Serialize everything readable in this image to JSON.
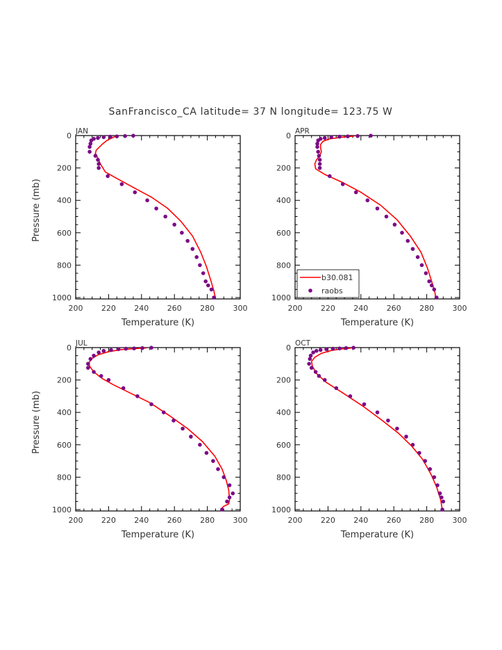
{
  "title": "SanFrancisco_CA  latitude= 37 N longitude= 123.75 W",
  "colors": {
    "model": "#ff0000",
    "obs": "#7b0a86",
    "frame": "#000000",
    "text": "#333333"
  },
  "legend": {
    "placement": "inside lower-left of APR panel",
    "model_label": "b30.081",
    "obs_label": "raobs"
  },
  "chart_data": [
    {
      "type": "line",
      "panel": "JAN",
      "xlabel": "Temperature (K)",
      "ylabel": "Pressure (mb)",
      "xlim": [
        200,
        300
      ],
      "ylim": [
        1000,
        0
      ],
      "xticks": [
        200,
        220,
        240,
        260,
        280,
        300
      ],
      "yticks": [
        0,
        200,
        400,
        600,
        800,
        1000
      ],
      "series": [
        {
          "name": "b30.081",
          "style": "line",
          "x": [
            224,
            222,
            219,
            216.5,
            214.5,
            212.5,
            212,
            213,
            214,
            215,
            218,
            225,
            235,
            246,
            256,
            264,
            271,
            276,
            279.5,
            282,
            284,
            285
          ],
          "y": [
            5,
            15,
            30,
            50,
            70,
            90,
            110,
            130,
            150,
            175,
            225,
            265,
            320,
            380,
            450,
            530,
            620,
            720,
            810,
            890,
            960,
            1005
          ]
        },
        {
          "name": "raobs",
          "style": "points",
          "x": [
            235,
            230,
            225,
            221,
            217,
            213.5,
            211,
            209.5,
            209,
            208.5,
            208.5,
            212,
            213.5,
            214,
            214,
            219.5,
            228,
            236,
            243.5,
            249,
            254.5,
            260,
            264.5,
            268,
            271,
            273.5,
            275.5,
            277.5,
            279,
            280.5,
            282.5,
            284
          ],
          "y": [
            1,
            3,
            5,
            7,
            10,
            15,
            20,
            30,
            50,
            70,
            100,
            125,
            150,
            175,
            200,
            250,
            300,
            350,
            400,
            450,
            500,
            550,
            600,
            650,
            700,
            750,
            800,
            850,
            900,
            925,
            950,
            1000
          ]
        }
      ]
    },
    {
      "type": "line",
      "panel": "APR",
      "xlabel": "Temperature (K)",
      "ylabel": "",
      "xlim": [
        200,
        300
      ],
      "ylim": [
        1000,
        0
      ],
      "xticks": [
        200,
        220,
        240,
        260,
        280,
        300
      ],
      "yticks": [
        0,
        200,
        400,
        600,
        800,
        1000
      ],
      "series": [
        {
          "name": "b30.081",
          "style": "line",
          "x": [
            236,
            232,
            227,
            221,
            217,
            215.5,
            215.5,
            216,
            215,
            213,
            212,
            212.5,
            218,
            229,
            240,
            252,
            262,
            270,
            276.5,
            280.5,
            283,
            285,
            285.5
          ],
          "y": [
            3,
            7,
            12,
            20,
            35,
            55,
            75,
            100,
            125,
            150,
            175,
            205,
            240,
            290,
            350,
            430,
            520,
            620,
            720,
            820,
            900,
            970,
            1005
          ]
        },
        {
          "name": "raobs",
          "style": "points",
          "x": [
            246,
            238,
            232,
            227,
            222,
            218,
            215.5,
            214,
            213.5,
            213.5,
            214,
            214.5,
            215,
            215,
            215,
            221,
            229,
            237,
            244,
            250,
            255.5,
            260.5,
            265,
            268.5,
            271.5,
            274.5,
            277,
            279.5,
            281.5,
            283,
            284.5,
            286
          ],
          "y": [
            1,
            3,
            5,
            7,
            10,
            15,
            20,
            30,
            50,
            70,
            100,
            125,
            150,
            175,
            200,
            250,
            300,
            350,
            400,
            450,
            500,
            550,
            600,
            650,
            700,
            750,
            800,
            850,
            900,
            925,
            950,
            1000
          ]
        }
      ]
    },
    {
      "type": "line",
      "panel": "JUL",
      "xlabel": "Temperature (K)",
      "ylabel": "Pressure (mb)",
      "xlim": [
        200,
        300
      ],
      "ylim": [
        1000,
        0
      ],
      "xticks": [
        200,
        220,
        240,
        260,
        280,
        300
      ],
      "yticks": [
        0,
        200,
        400,
        600,
        800,
        1000
      ],
      "series": [
        {
          "name": "b30.081",
          "style": "line",
          "x": [
            243,
            236,
            228,
            220,
            213.5,
            209.5,
            208,
            208.5,
            211,
            216,
            223,
            233,
            245,
            257,
            268,
            277,
            284.5,
            289,
            291.5,
            293,
            293.5,
            293,
            290,
            288.5
          ],
          "y": [
            2,
            6,
            12,
            25,
            45,
            70,
            95,
            115,
            150,
            190,
            230,
            280,
            340,
            420,
            500,
            580,
            670,
            750,
            820,
            880,
            940,
            965,
            980,
            995
          ]
        },
        {
          "name": "raobs",
          "style": "points",
          "x": [
            246,
            240.5,
            235.5,
            230.5,
            226,
            221.5,
            217,
            214,
            211,
            209,
            207.5,
            207.5,
            211,
            215.5,
            220,
            229,
            237.5,
            246,
            253.5,
            259.5,
            265,
            270,
            275.5,
            279.5,
            283.5,
            286.5,
            290,
            293.5,
            295.5,
            293.5,
            292,
            289
          ],
          "y": [
            1,
            3,
            5,
            7,
            10,
            15,
            20,
            30,
            50,
            70,
            100,
            125,
            150,
            175,
            200,
            250,
            300,
            350,
            400,
            450,
            500,
            550,
            600,
            650,
            700,
            750,
            800,
            850,
            900,
            925,
            950,
            1000
          ]
        }
      ]
    },
    {
      "type": "line",
      "panel": "OCT",
      "xlabel": "Temperature (K)",
      "ylabel": "",
      "xlim": [
        200,
        300
      ],
      "ylim": [
        1000,
        0
      ],
      "xticks": [
        200,
        220,
        240,
        260,
        280,
        300
      ],
      "yticks": [
        0,
        200,
        400,
        600,
        800,
        1000
      ],
      "series": [
        {
          "name": "b30.081",
          "style": "line",
          "x": [
            234,
            228,
            222,
            216,
            212,
            210,
            210.5,
            213,
            219,
            229,
            241,
            253,
            263,
            271,
            277.5,
            282.5,
            286,
            288.5,
            289.5
          ],
          "y": [
            3,
            8,
            18,
            35,
            60,
            85,
            115,
            160,
            215,
            280,
            360,
            450,
            530,
            610,
            690,
            780,
            860,
            940,
            1005
          ]
        },
        {
          "name": "raobs",
          "style": "points",
          "x": [
            235.5,
            231,
            227,
            223,
            219,
            215.5,
            213,
            211,
            209.5,
            209,
            208.5,
            210,
            212.5,
            214.5,
            218,
            225,
            233.5,
            242,
            250,
            256.5,
            262,
            267.5,
            271.5,
            275.5,
            279,
            282,
            284.5,
            286.5,
            288,
            289,
            290,
            289.5
          ],
          "y": [
            1,
            3,
            5,
            7,
            10,
            15,
            20,
            30,
            50,
            70,
            100,
            125,
            150,
            175,
            200,
            250,
            300,
            350,
            400,
            450,
            500,
            550,
            600,
            650,
            700,
            750,
            800,
            850,
            900,
            925,
            950,
            1000
          ]
        }
      ]
    }
  ]
}
